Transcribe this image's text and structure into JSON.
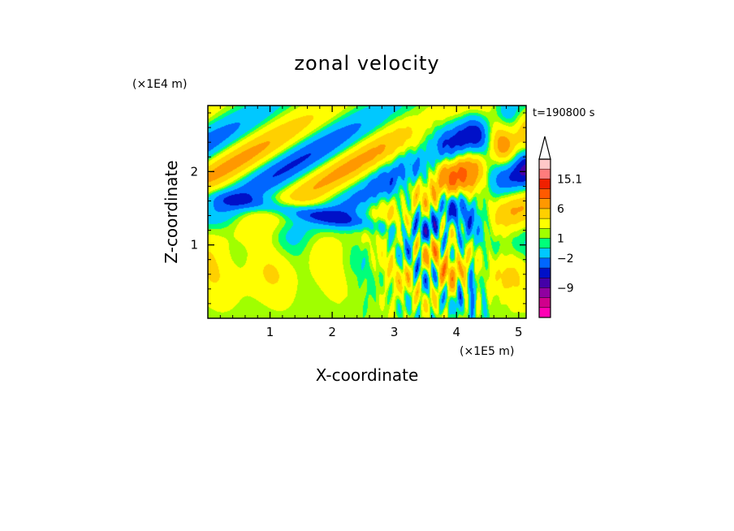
{
  "chart_data": {
    "type": "heatmap",
    "title": "zonal velocity",
    "xlabel": "X-coordinate",
    "ylabel": "Z-coordinate",
    "x_unit": "(×1E5 m)",
    "y_unit": "(×1E4 m)",
    "time_label": "t=190800 s",
    "xlim": [
      0,
      5.12
    ],
    "ylim": [
      0,
      2.9
    ],
    "xticks": [
      "1",
      "2",
      "3",
      "4",
      "5"
    ],
    "yticks": [
      "1",
      "2"
    ],
    "colorbar": {
      "levels": [
        -15,
        -12,
        -9,
        -6,
        -4,
        -2,
        0,
        1,
        2,
        4,
        6,
        9,
        12,
        15.1
      ],
      "colors": [
        "#ff00b4",
        "#d0008c",
        "#9000a0",
        "#4400a8",
        "#0010c8",
        "#0066ff",
        "#00c8ff",
        "#00ff7a",
        "#a0ff00",
        "#ffff00",
        "#ffd000",
        "#ff9800",
        "#ff5a00",
        "#f02000",
        "#ff7c7c",
        "#ffc8c8"
      ],
      "labels": [
        "15.1",
        "6",
        "1",
        "−2",
        "−9"
      ],
      "extend": "max"
    }
  }
}
